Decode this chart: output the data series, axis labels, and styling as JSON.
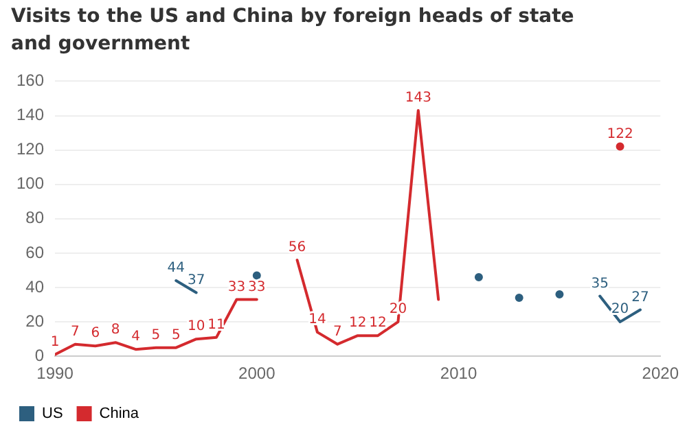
{
  "chart_data": {
    "type": "line",
    "title": "Visits to the US and China by foreign heads of state and government",
    "x": [
      1990,
      1991,
      1992,
      1993,
      1994,
      1995,
      1996,
      1997,
      1998,
      1999,
      2000,
      2001,
      2002,
      2003,
      2004,
      2005,
      2006,
      2007,
      2008,
      2009,
      2010,
      2011,
      2012,
      2013,
      2014,
      2015,
      2016,
      2017,
      2018,
      2019
    ],
    "series": [
      {
        "name": "US",
        "color": "#2d5f7f",
        "values": [
          null,
          null,
          null,
          null,
          null,
          null,
          44,
          37,
          null,
          null,
          47,
          null,
          null,
          null,
          null,
          null,
          null,
          null,
          null,
          null,
          null,
          46,
          null,
          34,
          null,
          36,
          null,
          35,
          20,
          27
        ],
        "value_labels": [
          null,
          null,
          null,
          null,
          null,
          null,
          "44",
          "37",
          null,
          null,
          null,
          null,
          null,
          null,
          null,
          null,
          null,
          null,
          null,
          null,
          null,
          null,
          null,
          null,
          null,
          null,
          null,
          "35",
          "20",
          "27"
        ]
      },
      {
        "name": "China",
        "color": "#d42a2e",
        "values": [
          1,
          7,
          6,
          8,
          4,
          5,
          5,
          10,
          11,
          33,
          33,
          null,
          56,
          14,
          7,
          12,
          12,
          20,
          143,
          33,
          null,
          null,
          null,
          null,
          null,
          null,
          null,
          null,
          122,
          null
        ],
        "value_labels": [
          "1",
          "7",
          "6",
          "8",
          "4",
          "5",
          "5",
          "10",
          "11",
          "33",
          "33",
          null,
          "56",
          "14",
          "7",
          "12",
          "12",
          "20",
          "143",
          null,
          null,
          null,
          null,
          null,
          null,
          null,
          null,
          null,
          "122",
          null
        ]
      }
    ],
    "xlim": [
      1990,
      2020
    ],
    "xticks": [
      1990,
      2000,
      2010,
      2020
    ],
    "ylim": [
      0,
      160
    ],
    "yticks": [
      0,
      20,
      40,
      60,
      80,
      100,
      120,
      140,
      160
    ],
    "grid": "y",
    "legend": "bottom left",
    "marker": "none",
    "line_style": "solid"
  }
}
